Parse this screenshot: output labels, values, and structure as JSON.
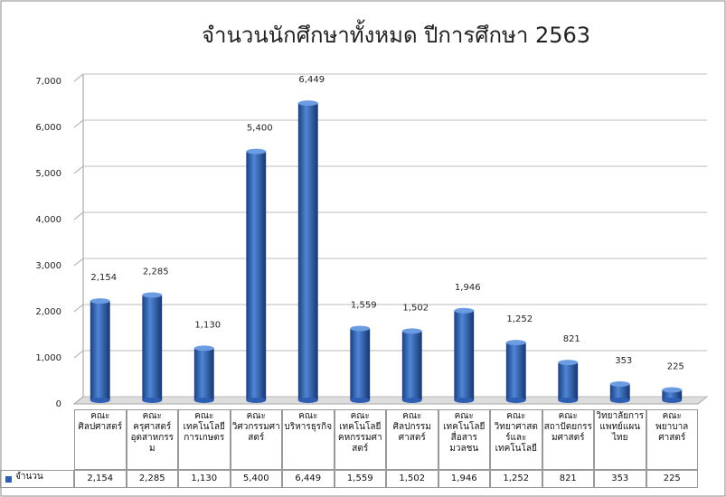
{
  "chart_data": {
    "type": "bar",
    "title": "จำนวนนักศึกษาทั้งหมด ปีการศึกษา 2563",
    "categories": [
      "คณะศิลปศาสตร์",
      "คณะครุศาสตร์อุตสาหกรรม",
      "คณะเทคโนโลยีการเกษตร",
      "คณะวิศวกรรมศาสตร์",
      "คณะบริหารธุรกิจ",
      "คณะเทคโนโลยีคหกรรมศาสตร์",
      "คณะศิลปกรรมศาสตร์",
      "คณะเทคโนโลยีสื่อสารมวลชน",
      "คณะวิทยาศาสตร์และเทคโนโลยี",
      "คณะสถาปัตยกรรมศาสตร์",
      "วิทยาลัยการแพทย์แผนไทย",
      "คณะพยาบาลศาสตร์"
    ],
    "series": [
      {
        "name": "จำนวน",
        "color": "#2f5fb3",
        "values": [
          2154,
          2285,
          1130,
          5400,
          6449,
          1559,
          1502,
          1946,
          1252,
          821,
          353,
          225
        ],
        "value_labels": [
          "2,154",
          "2,285",
          "1,130",
          "5,400",
          "6,449",
          "1,559",
          "1,502",
          "1,946",
          "1,252",
          "821",
          "353",
          "225"
        ]
      }
    ],
    "ylim": [
      0,
      7000
    ],
    "yticks": [
      0,
      {
        "value": 1000,
        "label": "1,000"
      },
      {
        "value": 2000,
        "label": "2,000"
      },
      {
        "value": 3000,
        "label": "3,000"
      },
      {
        "value": 4000,
        "label": "4,000"
      },
      {
        "value": 5000,
        "label": "5,000"
      },
      {
        "value": 6000,
        "label": "6,000"
      },
      {
        "value": 7000,
        "label": "7,000"
      }
    ],
    "grid": true
  }
}
